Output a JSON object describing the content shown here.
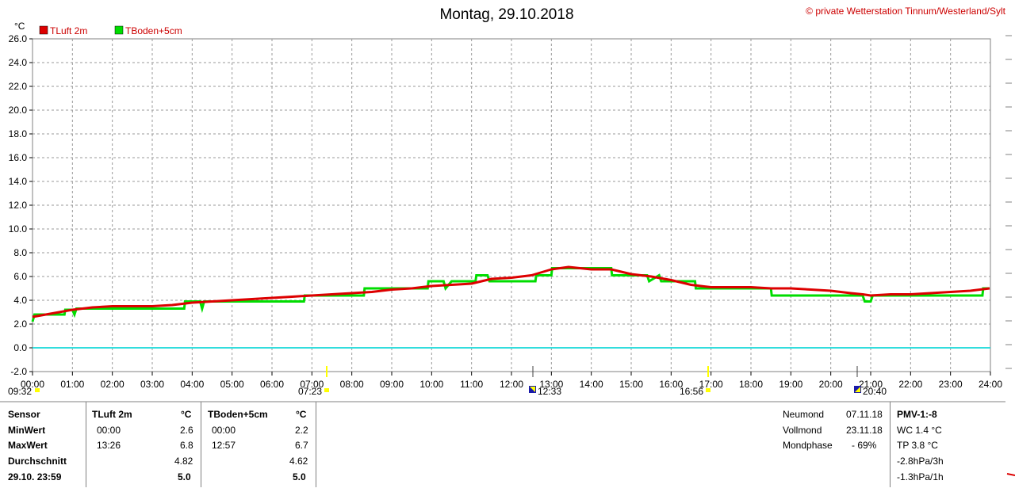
{
  "header": {
    "title": "Montag, 29.10.2018",
    "copyright": "© private Wetterstation Tinnum/Westerland/Sylt",
    "unit": "°C"
  },
  "chart_data": {
    "type": "line",
    "ylabel": "°C",
    "ylim": [
      -2,
      26
    ],
    "yticks": [
      "26.0",
      "24.0",
      "22.0",
      "20.0",
      "18.0",
      "16.0",
      "14.0",
      "12.0",
      "10.0",
      "8.0",
      "6.0",
      "4.0",
      "2.0",
      "0.0",
      "-2.0"
    ],
    "xlim": [
      0,
      24
    ],
    "xticks": [
      "00:00",
      "01:00",
      "02:00",
      "03:00",
      "04:00",
      "05:00",
      "06:00",
      "07:00",
      "08:00",
      "09:00",
      "10:00",
      "11:00",
      "12:00",
      "13:00",
      "14:00",
      "15:00",
      "16:00",
      "17:00",
      "18:00",
      "19:00",
      "20:00",
      "21:00",
      "22:00",
      "23:00",
      "24:00"
    ],
    "grid": true,
    "legend": "top-left",
    "series": [
      {
        "name": "TLuft 2m",
        "color": "#dd0000",
        "x": [
          0,
          0.5,
          1,
          1.5,
          2,
          2.5,
          3,
          3.5,
          4,
          4.5,
          5,
          5.5,
          6,
          6.5,
          7,
          7.5,
          8,
          8.5,
          9,
          9.5,
          10,
          10.5,
          11,
          11.5,
          12,
          12.5,
          13,
          13.43,
          14,
          14.5,
          15,
          15.5,
          16,
          16.5,
          17,
          17.5,
          18,
          18.5,
          19,
          19.5,
          20,
          20.5,
          20.8,
          21,
          21.5,
          22,
          22.5,
          23,
          23.5,
          23.98
        ],
        "y": [
          2.6,
          2.9,
          3.2,
          3.4,
          3.5,
          3.5,
          3.5,
          3.6,
          3.8,
          3.9,
          4.0,
          4.1,
          4.2,
          4.3,
          4.4,
          4.5,
          4.6,
          4.7,
          4.9,
          5.0,
          5.2,
          5.3,
          5.4,
          5.8,
          5.9,
          6.1,
          6.6,
          6.8,
          6.6,
          6.6,
          6.2,
          6.0,
          5.7,
          5.3,
          5.1,
          5.1,
          5.1,
          5.0,
          5.0,
          4.9,
          4.8,
          4.6,
          4.5,
          4.4,
          4.5,
          4.5,
          4.6,
          4.7,
          4.8,
          5.0
        ]
      },
      {
        "name": "TBoden+5cm",
        "color": "#00dd00",
        "x": [
          0,
          0.05,
          0.8,
          0.82,
          1,
          1.05,
          1.1,
          3.8,
          3.82,
          4.2,
          4.25,
          4.3,
          6.8,
          6.82,
          8.3,
          8.32,
          9.9,
          9.92,
          10.3,
          10.35,
          10.5,
          11.1,
          11.12,
          11.4,
          11.45,
          12.6,
          12.62,
          13,
          13.02,
          14.5,
          14.52,
          15.4,
          15.45,
          15.7,
          15.75,
          16.6,
          16.62,
          17,
          17.02,
          18.5,
          18.52,
          20.8,
          20.85,
          21,
          21.05,
          23.8,
          23.82,
          23.98
        ],
        "y": [
          2.2,
          2.8,
          2.8,
          3.2,
          3.2,
          2.8,
          3.3,
          3.3,
          3.9,
          3.9,
          3.3,
          3.9,
          3.9,
          4.4,
          4.4,
          5.0,
          5.0,
          5.6,
          5.6,
          5.0,
          5.6,
          5.6,
          6.1,
          6.1,
          5.6,
          5.6,
          6.1,
          6.1,
          6.7,
          6.7,
          6.1,
          6.1,
          5.6,
          6.1,
          5.6,
          5.6,
          5.0,
          5.0,
          5.0,
          5.0,
          4.4,
          4.4,
          3.9,
          3.9,
          4.4,
          4.4,
          5.0,
          5.0
        ]
      }
    ],
    "annotations": {
      "sunrise": "07:23",
      "sunset": "16:56",
      "moonrise": "09:32",
      "moonset": "12:33",
      "moon_time_2": "20:40"
    }
  },
  "stats": {
    "labels": [
      "Sensor",
      "MinWert",
      "MaxWert",
      "Durchschnitt",
      "29.10. 23:59"
    ],
    "sensors": [
      {
        "name": "TLuft 2m",
        "unit": "°C",
        "min_time": "00:00",
        "min": "2.6",
        "max_time": "13:26",
        "max": "6.8",
        "avg": "4.82",
        "current": "5.0"
      },
      {
        "name": "TBoden+5cm",
        "unit": "°C",
        "min_time": "00:00",
        "min": "2.2",
        "max_time": "12:57",
        "max": "6.7",
        "avg": "4.62",
        "current": "5.0"
      }
    ]
  },
  "moon": {
    "rows": [
      {
        "label": "Neumond",
        "value": "07.11.18"
      },
      {
        "label": "Vollmond",
        "value": "23.11.18"
      },
      {
        "label": "Mondphase",
        "value": "- 69%"
      }
    ]
  },
  "pmv": {
    "title": "PMV-1:-8",
    "lines": [
      "WC 1.4 °C",
      "TP 3.8 °C",
      "-2.8hPa/3h",
      "-1.3hPa/1h"
    ]
  },
  "colors": {
    "zero_line": "#33dddd",
    "tluft": "#dd0000",
    "tboden": "#00dd00",
    "sun_marker": "#ffff00"
  }
}
